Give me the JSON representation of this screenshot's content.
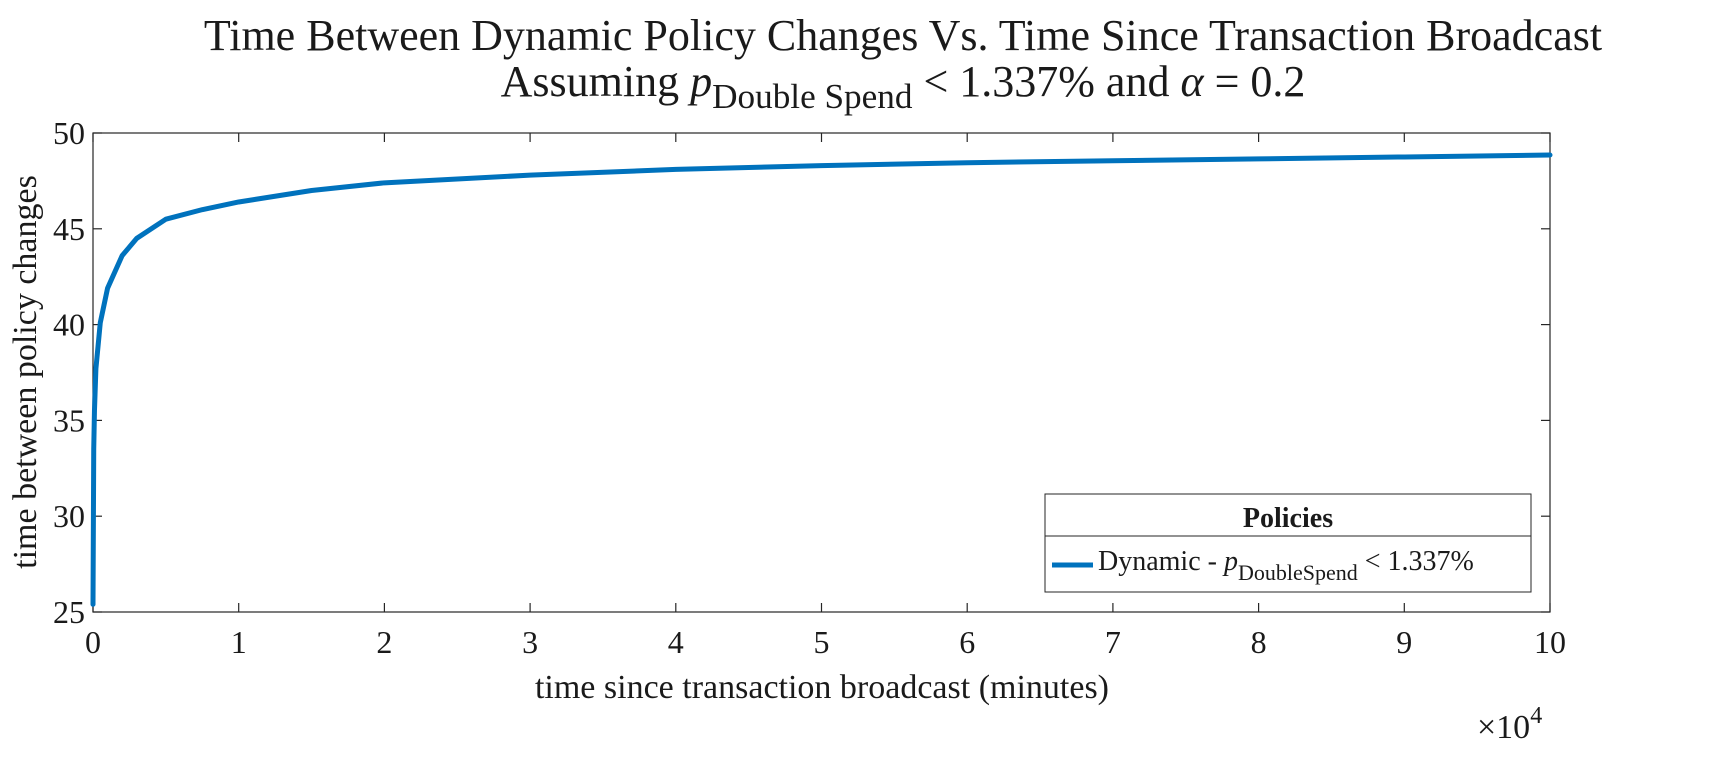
{
  "chart_data": {
    "type": "line",
    "title_line1": "Time Between Dynamic Policy Changes Vs. Time Since Transaction Broadcast",
    "title_line2": {
      "prefix": "Assuming ",
      "p": "p",
      "p_sub": "Double Spend",
      "suffix": " < 1.337% and ",
      "alpha": "α",
      "alpha_value": " = 0.2"
    },
    "xlabel": "time since transaction broadcast (minutes)",
    "ylabel": "time between policy changes",
    "x_exponent": {
      "base": "×10",
      "power": "4"
    },
    "xlim": [
      0,
      100000
    ],
    "ylim": [
      25,
      50
    ],
    "x_ticks": [
      0,
      10000,
      20000,
      30000,
      40000,
      50000,
      60000,
      70000,
      80000,
      90000,
      100000
    ],
    "x_tick_labels": [
      "0",
      "1",
      "2",
      "3",
      "4",
      "5",
      "6",
      "7",
      "8",
      "9",
      "10"
    ],
    "y_ticks": [
      25,
      30,
      35,
      40,
      45,
      50
    ],
    "y_tick_labels": [
      "25",
      "30",
      "35",
      "40",
      "45",
      "50"
    ],
    "grid": false,
    "legend_placement": "bottom-right",
    "legend_title": "Policies",
    "series": [
      {
        "name": {
          "prefix": "Dynamic -  ",
          "p": "p",
          "p_sub": "DoubleSpend",
          "suffix": " < 1.337%"
        },
        "color": "#0072BD",
        "x": [
          0,
          50,
          100,
          200,
          500,
          1000,
          2000,
          3000,
          5000,
          7500,
          10000,
          15000,
          20000,
          30000,
          40000,
          50000,
          60000,
          70000,
          80000,
          90000,
          100000
        ],
        "y": [
          25.4,
          33.5,
          35.5,
          37.7,
          40.1,
          41.9,
          43.6,
          44.5,
          45.5,
          46.0,
          46.4,
          47.0,
          47.4,
          47.8,
          48.1,
          48.3,
          48.45,
          48.55,
          48.65,
          48.75,
          48.85
        ]
      }
    ]
  }
}
